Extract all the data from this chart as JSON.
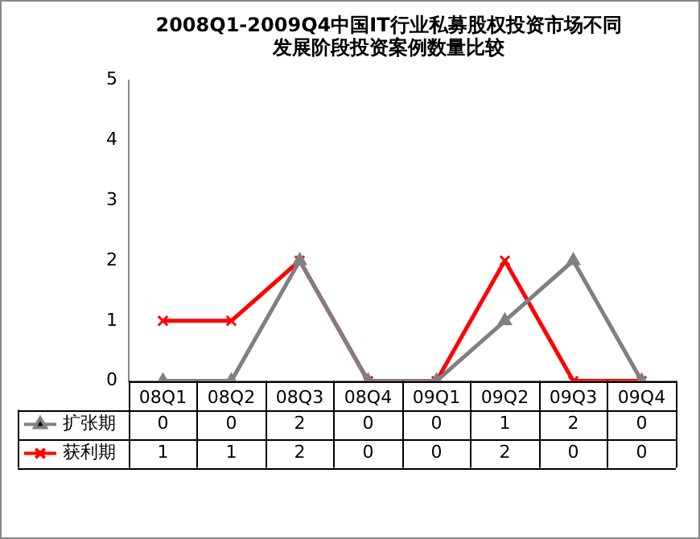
{
  "chart_data": {
    "type": "line",
    "title": "2008Q1-2009Q4中国IT行业私募股权投资市场不同发展阶段投资案例数量比较",
    "categories": [
      "08Q1",
      "08Q2",
      "08Q3",
      "08Q4",
      "09Q1",
      "09Q2",
      "09Q3",
      "09Q4"
    ],
    "series": [
      {
        "name": "扩张期",
        "color": "#808080",
        "marker": "triangle",
        "values": [
          0,
          0,
          2,
          0,
          0,
          1,
          2,
          0
        ]
      },
      {
        "name": "获利期",
        "color": "#ff0000",
        "marker": "cross",
        "values": [
          1,
          1,
          2,
          0,
          0,
          2,
          0,
          0
        ]
      }
    ],
    "ylim": [
      0,
      5
    ],
    "yticks": [
      0,
      1,
      2,
      3,
      4,
      5
    ],
    "grid": false,
    "legend": "bottom",
    "data_labels": true
  }
}
